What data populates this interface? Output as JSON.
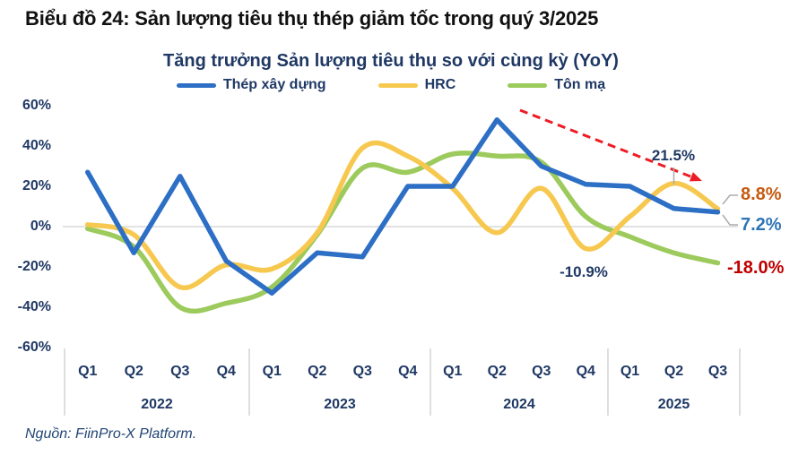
{
  "title": "Biểu đồ 24: Sản lượng tiêu thụ thép giảm tốc trong quý 3/2025",
  "source": "Nguồn: FiinPro-X Platform.",
  "chart_data": {
    "type": "line",
    "title": "Tăng trưởng Sản lượng tiêu thụ so với cùng kỳ (YoY)",
    "legend_position": "top",
    "grid": "0% horizontal gridline only",
    "ylim": [
      -60,
      60
    ],
    "y_ticks": [
      "60%",
      "40%",
      "20%",
      "0%",
      "-20%",
      "-40%",
      "-60%"
    ],
    "y_tick_values": [
      60,
      40,
      20,
      0,
      -20,
      -40,
      -60
    ],
    "categories": [
      "2022-Q1",
      "2022-Q2",
      "2022-Q3",
      "2022-Q4",
      "2023-Q1",
      "2023-Q2",
      "2023-Q3",
      "2023-Q4",
      "2024-Q1",
      "2024-Q2",
      "2024-Q3",
      "2024-Q4",
      "2025-Q1",
      "2025-Q2",
      "2025-Q3"
    ],
    "x_axis": {
      "quarter_labels": [
        "Q1",
        "Q2",
        "Q3",
        "Q4",
        "Q1",
        "Q2",
        "Q3",
        "Q4",
        "Q1",
        "Q2",
        "Q3",
        "Q4",
        "Q1",
        "Q2",
        "Q3"
      ],
      "year_labels": [
        "2022",
        "2023",
        "2024",
        "2025"
      ],
      "quarters_per_year": [
        4,
        4,
        4,
        3
      ]
    },
    "series": [
      {
        "name": "Thép xây dựng",
        "color": "#2D6FC5",
        "style": "straight",
        "values": [
          27,
          -13,
          25,
          -17,
          -33,
          -13,
          -15,
          20,
          20,
          53,
          30,
          21,
          20,
          9,
          7.2
        ]
      },
      {
        "name": "HRC",
        "color": "#F7C84F",
        "style": "smooth",
        "values": [
          1,
          -4,
          -30,
          -19,
          -21,
          -3,
          39,
          35,
          19,
          -3,
          19,
          -10.9,
          5,
          21.5,
          8.8
        ]
      },
      {
        "name": "Tôn mạ",
        "color": "#9CCA5C",
        "style": "smooth",
        "values": [
          -1,
          -10,
          -40,
          -38,
          -30,
          -4,
          29,
          27,
          36,
          35,
          32,
          5,
          -5,
          -13,
          -18
        ]
      }
    ],
    "annotations": {
      "hrc_peak": {
        "text": "21.5%",
        "color": "#1F3864",
        "at": "2025-Q2 HRC"
      },
      "hrc_trough": {
        "text": "-10.9%",
        "color": "#1F3864",
        "at": "2024-Q4 HRC"
      },
      "hrc_end": {
        "text": "8.8%",
        "color": "#C55A11",
        "at": "2025-Q3 HRC"
      },
      "construction_end": {
        "text": "7.2%",
        "color": "#2E74B5",
        "at": "2025-Q3 Thép xây dựng"
      },
      "tonma_end": {
        "text": "-18.0%",
        "color": "#C00000",
        "at": "2025-Q3 Tôn mạ"
      },
      "trend_arrow": {
        "color": "#ED1C24",
        "style": "dashed",
        "from": "2024-Q2 peak",
        "to": "2025-Q2"
      }
    },
    "colors": {
      "navy_text": "#1F3864",
      "gridline": "#D9D9D9",
      "axis_separator": "#C8C8C8",
      "leader_line": "#ABABAB"
    }
  }
}
